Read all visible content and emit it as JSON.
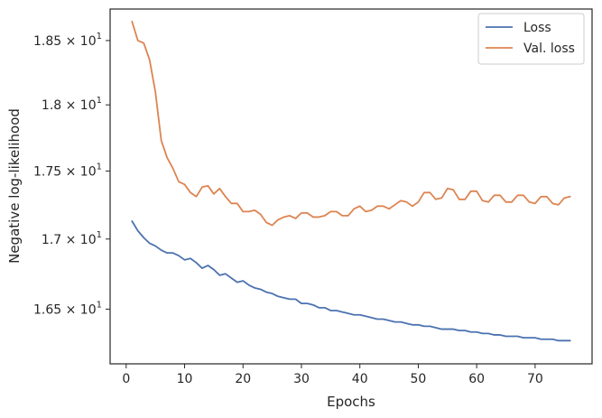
{
  "chart_data": {
    "type": "line",
    "title": "",
    "xlabel": "Epochs",
    "ylabel": "Negative log-likelihood",
    "xlim": [
      -2.75,
      79.75
    ],
    "ylim": [
      16.12,
      18.75
    ],
    "y_scale": "log",
    "grid": false,
    "legend_position": "top-right",
    "x_ticks": [
      0,
      10,
      20,
      30,
      40,
      50,
      60,
      70
    ],
    "x_tick_labels": [
      "0",
      "10",
      "20",
      "30",
      "40",
      "50",
      "60",
      "70"
    ],
    "y_ticks": [
      16.5,
      17.0,
      17.5,
      18.0,
      18.5
    ],
    "y_tick_labels": [
      {
        "mantissa": "1.65",
        "exp": "1"
      },
      {
        "mantissa": "1.7",
        "exp": "1"
      },
      {
        "mantissa": "1.75",
        "exp": "1"
      },
      {
        "mantissa": "1.8",
        "exp": "1"
      },
      {
        "mantissa": "1.85",
        "exp": "1"
      }
    ],
    "x": [
      1,
      2,
      3,
      4,
      5,
      6,
      7,
      8,
      9,
      10,
      11,
      12,
      13,
      14,
      15,
      16,
      17,
      18,
      19,
      20,
      21,
      22,
      23,
      24,
      25,
      26,
      27,
      28,
      29,
      30,
      31,
      32,
      33,
      34,
      35,
      36,
      37,
      38,
      39,
      40,
      41,
      42,
      43,
      44,
      45,
      46,
      47,
      48,
      49,
      50,
      51,
      52,
      53,
      54,
      55,
      56,
      57,
      58,
      59,
      60,
      61,
      62,
      63,
      64,
      65,
      66,
      67,
      68,
      69,
      70,
      71,
      72,
      73,
      74,
      75,
      76
    ],
    "series": [
      {
        "name": "Loss",
        "color": "#4c72b0",
        "values": [
          17.13,
          17.06,
          17.01,
          16.97,
          16.95,
          16.92,
          16.9,
          16.9,
          16.88,
          16.85,
          16.86,
          16.83,
          16.79,
          16.81,
          16.78,
          16.74,
          16.75,
          16.72,
          16.69,
          16.7,
          16.67,
          16.65,
          16.64,
          16.62,
          16.61,
          16.59,
          16.58,
          16.57,
          16.57,
          16.54,
          16.54,
          16.53,
          16.51,
          16.51,
          16.49,
          16.49,
          16.48,
          16.47,
          16.46,
          16.46,
          16.45,
          16.44,
          16.43,
          16.43,
          16.42,
          16.41,
          16.41,
          16.4,
          16.39,
          16.39,
          16.38,
          16.38,
          16.37,
          16.36,
          16.36,
          16.36,
          16.35,
          16.35,
          16.34,
          16.34,
          16.33,
          16.33,
          16.32,
          16.32,
          16.31,
          16.31,
          16.31,
          16.3,
          16.3,
          16.3,
          16.29,
          16.29,
          16.29,
          16.28,
          16.28,
          16.28
        ]
      },
      {
        "name": "Val. loss",
        "color": "#dd8452",
        "values": [
          18.65,
          18.5,
          18.48,
          18.35,
          18.1,
          17.73,
          17.6,
          17.52,
          17.42,
          17.4,
          17.34,
          17.31,
          17.38,
          17.39,
          17.33,
          17.37,
          17.31,
          17.26,
          17.26,
          17.2,
          17.2,
          17.21,
          17.18,
          17.12,
          17.1,
          17.14,
          17.16,
          17.17,
          17.15,
          17.19,
          17.19,
          17.16,
          17.16,
          17.17,
          17.2,
          17.2,
          17.17,
          17.17,
          17.22,
          17.24,
          17.2,
          17.21,
          17.24,
          17.24,
          17.22,
          17.25,
          17.28,
          17.27,
          17.24,
          17.27,
          17.34,
          17.34,
          17.29,
          17.3,
          17.37,
          17.36,
          17.29,
          17.29,
          17.35,
          17.35,
          17.28,
          17.27,
          17.32,
          17.32,
          17.27,
          17.27,
          17.32,
          17.32,
          17.27,
          17.26,
          17.31,
          17.31,
          17.26,
          17.25,
          17.3,
          17.31
        ]
      }
    ]
  }
}
